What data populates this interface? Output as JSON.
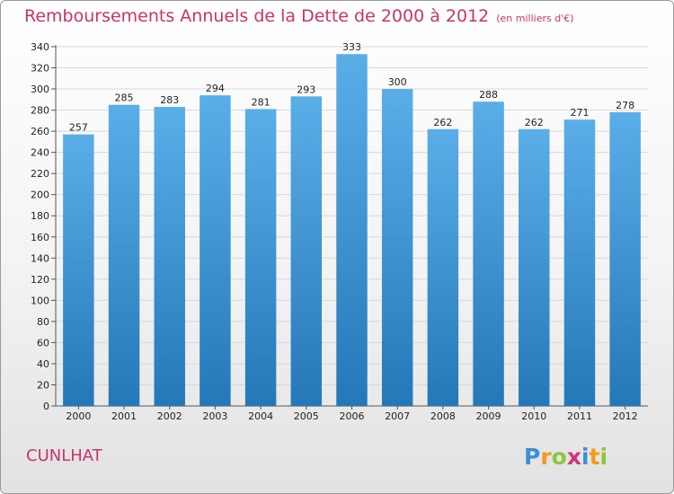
{
  "header": {
    "title": "Remboursements Annuels de la Dette de 2000 à 2012",
    "unit": "(en milliers d'€)"
  },
  "footer": {
    "commune": "CUNLHAT",
    "brand": "Proxiti"
  },
  "colors": {
    "title": "#c8336e",
    "bar_top": "#5aaee8",
    "bar_bottom": "#2478b8",
    "grid": "#d8d8d8"
  },
  "chart_data": {
    "type": "bar",
    "title": "Remboursements Annuels de la Dette de 2000 à 2012",
    "subtitle": "(en milliers d'€)",
    "xlabel": "",
    "ylabel": "",
    "categories": [
      "2000",
      "2001",
      "2002",
      "2003",
      "2004",
      "2005",
      "2006",
      "2007",
      "2008",
      "2009",
      "2010",
      "2011",
      "2012"
    ],
    "values": [
      257,
      285,
      283,
      294,
      281,
      293,
      333,
      300,
      262,
      288,
      262,
      271,
      278
    ],
    "ylim": [
      0,
      340
    ],
    "yticks": [
      0,
      20,
      40,
      60,
      80,
      100,
      120,
      140,
      160,
      180,
      200,
      220,
      240,
      260,
      280,
      300,
      320,
      340
    ],
    "grid": true,
    "data_labels": true
  }
}
